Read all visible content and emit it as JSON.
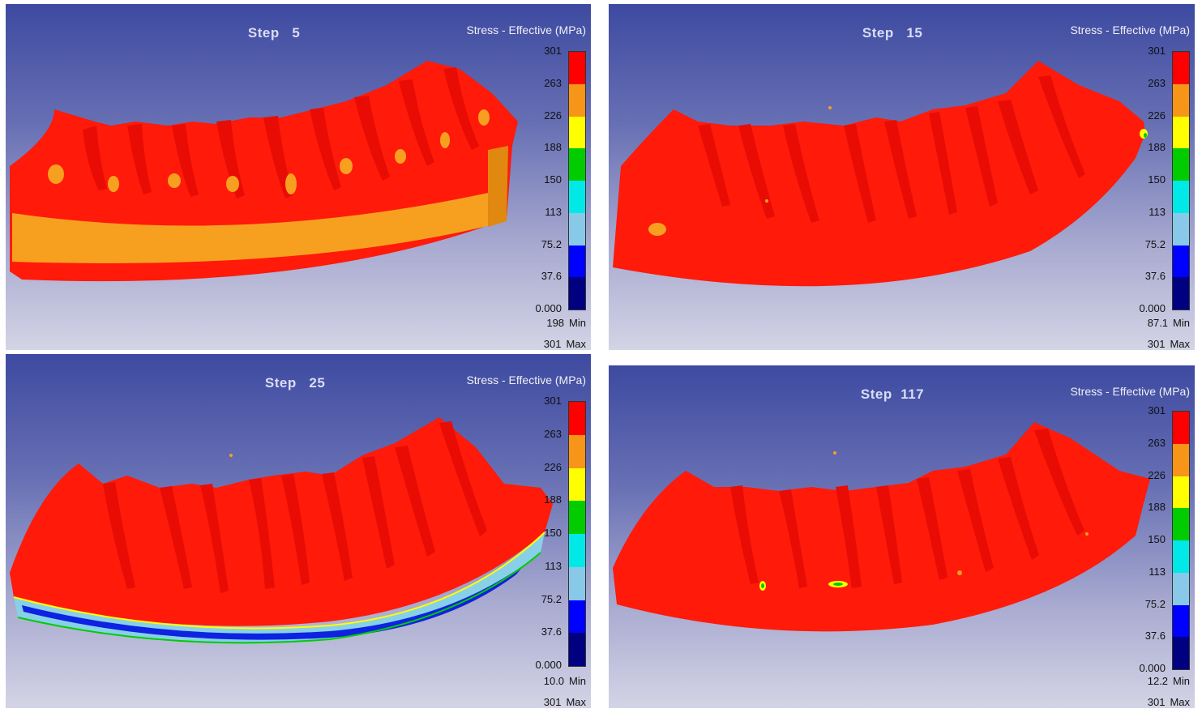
{
  "legend": {
    "title": "Stress - Effective (MPa)",
    "ticks": [
      "301",
      "263",
      "226",
      "188",
      "150",
      "113",
      "75.2",
      "37.6",
      "0.000"
    ],
    "colors": [
      "#ff0000",
      "#f79518",
      "#ffff00",
      "#00cc00",
      "#00e8e8",
      "#88c8e8",
      "#0000ff",
      "#000080"
    ],
    "min_label": "Min",
    "max_label": "Max"
  },
  "panels": [
    {
      "step_label": "Step",
      "step_number": "5",
      "min_value": "198",
      "max_value": "301"
    },
    {
      "step_label": "Step",
      "step_number": "15",
      "min_value": "87.1",
      "max_value": "301"
    },
    {
      "step_label": "Step",
      "step_number": "25",
      "min_value": "10.0",
      "max_value": "301"
    },
    {
      "step_label": "Step",
      "step_number": "117",
      "min_value": "12.2",
      "max_value": "301"
    }
  ]
}
